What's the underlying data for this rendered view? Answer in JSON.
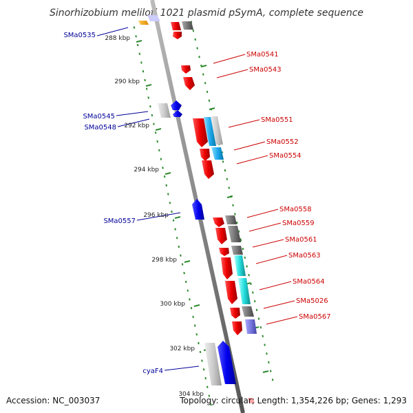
{
  "title": "Sinorhizobium meliloti 1021 plasmid pSymA, complete sequence",
  "footer": {
    "accession": "Accession: NC_003037",
    "topology": "Topology: circular; Length: 1,354,226 bp; Genes: 1,293"
  },
  "colors": {
    "backbone": "#888888",
    "ticks": "#2e8b2e",
    "forward_strand_label": "#cc0000",
    "reverse_strand_label": "#000099"
  },
  "scale_ticks": [
    "288 kbp",
    "290 kbp",
    "292 kbp",
    "294 kbp",
    "296 kbp",
    "298 kbp",
    "300 kbp",
    "302 kbp",
    "304 kbp"
  ],
  "gene_labels_left": [
    "SMa0535",
    "SMa0545",
    "SMa0548",
    "SMa0557",
    "cyaF4"
  ],
  "gene_labels_right": [
    "SMa0541",
    "SMa0543",
    "SMa0551",
    "SMa0552",
    "SMa0554",
    "SMa0558",
    "SMa0559",
    "SMa0561",
    "SMa0563",
    "SMa0564",
    "SMa5026",
    "SMa0567"
  ]
}
